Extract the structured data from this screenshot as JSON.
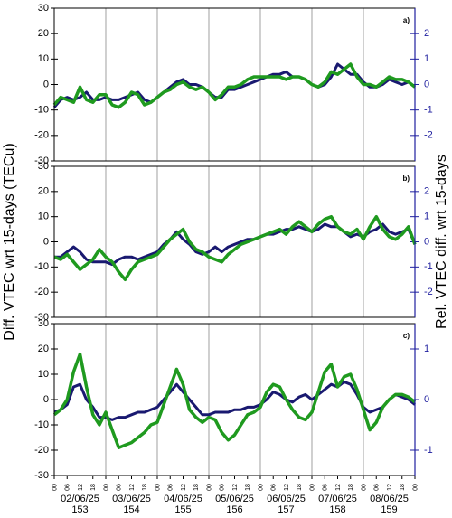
{
  "chart_data": [
    {
      "type": "line",
      "panel_label": "a)",
      "xlim": [
        0,
        168
      ],
      "ylim": [
        -30,
        30
      ],
      "yticks": [
        -30,
        -20,
        -10,
        0,
        10,
        20,
        30
      ],
      "y2lim": [
        -3,
        3
      ],
      "y2ticks": [
        -2,
        -1,
        0,
        1,
        2
      ],
      "x": [
        0,
        3,
        6,
        9,
        12,
        15,
        18,
        21,
        24,
        27,
        30,
        33,
        36,
        39,
        42,
        45,
        48,
        51,
        54,
        57,
        60,
        63,
        66,
        69,
        72,
        75,
        78,
        81,
        84,
        87,
        90,
        93,
        96,
        99,
        102,
        105,
        108,
        111,
        114,
        117,
        120,
        123,
        126,
        129,
        132,
        135,
        138,
        141,
        144,
        147,
        150,
        153,
        156,
        159,
        162,
        165,
        168
      ],
      "series": [
        {
          "color": "#191970",
          "values": [
            -9,
            -6,
            -5,
            -6,
            -5,
            -3,
            -6,
            -6,
            -5,
            -6,
            -6,
            -5,
            -4,
            -3,
            -6,
            -7,
            -5,
            -3,
            -1,
            1,
            2,
            0,
            0,
            -1,
            -3,
            -5,
            -5,
            -2,
            -2,
            -1,
            0,
            1,
            2,
            3,
            4,
            4,
            5,
            3,
            3,
            2,
            0,
            -1,
            0,
            3,
            8,
            6,
            4,
            4,
            1,
            -1,
            -1,
            0,
            2,
            1,
            0,
            1,
            -1
          ]
        },
        {
          "color": "#1f9a1f",
          "values": [
            -8,
            -5,
            -6,
            -7,
            -1,
            -6,
            -7,
            -4,
            -4,
            -8,
            -9,
            -7,
            -3,
            -4,
            -8,
            -7,
            -5,
            -3,
            -2,
            0,
            1,
            -1,
            -2,
            -1,
            -3,
            -6,
            -4,
            -1,
            -1,
            0,
            2,
            3,
            3,
            3,
            3,
            3,
            2,
            3,
            3,
            2,
            0,
            -1,
            1,
            5,
            4,
            6,
            8,
            3,
            0,
            0,
            -1,
            1,
            3,
            2,
            2,
            1,
            -1
          ]
        }
      ]
    },
    {
      "type": "line",
      "panel_label": "b)",
      "ylabel": "Diff. VTEC wrt 15-days (TECu)",
      "y2label": "Rel. VTEC diff. wrt 15-days",
      "xlim": [
        0,
        168
      ],
      "ylim": [
        -30,
        30
      ],
      "yticks": [
        -30,
        -20,
        -10,
        0,
        10,
        20,
        30
      ],
      "y2lim": [
        -3,
        3
      ],
      "y2ticks": [
        -2,
        -1,
        0,
        1,
        2
      ],
      "x": [
        0,
        3,
        6,
        9,
        12,
        15,
        18,
        21,
        24,
        27,
        30,
        33,
        36,
        39,
        42,
        45,
        48,
        51,
        54,
        57,
        60,
        63,
        66,
        69,
        72,
        75,
        78,
        81,
        84,
        87,
        90,
        93,
        96,
        99,
        102,
        105,
        108,
        111,
        114,
        117,
        120,
        123,
        126,
        129,
        132,
        135,
        138,
        141,
        144,
        147,
        150,
        153,
        156,
        159,
        162,
        165,
        168
      ],
      "series": [
        {
          "color": "#191970",
          "values": [
            -6,
            -6,
            -4,
            -2,
            -4,
            -7,
            -8,
            -8,
            -8,
            -9,
            -7,
            -6,
            -6,
            -7,
            -6,
            -5,
            -4,
            -1,
            1,
            4,
            1,
            -1,
            -4,
            -5,
            -4,
            -2,
            -4,
            -2,
            -1,
            0,
            1,
            1,
            2,
            3,
            3,
            4,
            5,
            5,
            6,
            5,
            4,
            5,
            7,
            6,
            6,
            4,
            2,
            3,
            2,
            4,
            5,
            7,
            4,
            3,
            4,
            5,
            -1
          ]
        },
        {
          "color": "#1f9a1f",
          "values": [
            -6,
            -7,
            -5,
            -8,
            -11,
            -9,
            -7,
            -3,
            -6,
            -8,
            -12,
            -15,
            -11,
            -8,
            -7,
            -6,
            -5,
            -2,
            1,
            3,
            5,
            0,
            -3,
            -4,
            -6,
            -7,
            -8,
            -5,
            -3,
            -1,
            0,
            1,
            2,
            3,
            4,
            5,
            3,
            6,
            8,
            6,
            4,
            7,
            9,
            10,
            6,
            4,
            3,
            5,
            1,
            6,
            10,
            5,
            2,
            1,
            3,
            6,
            -1
          ]
        }
      ]
    },
    {
      "type": "line",
      "panel_label": "c)",
      "xlim": [
        0,
        168
      ],
      "ylim": [
        -30,
        30
      ],
      "yticks": [
        -30,
        -20,
        -10,
        0,
        10,
        20,
        30
      ],
      "y2lim": [
        -1.5,
        1.5
      ],
      "y2ticks": [
        -1,
        0,
        1
      ],
      "x": [
        0,
        3,
        6,
        9,
        12,
        15,
        18,
        21,
        24,
        27,
        30,
        33,
        36,
        39,
        42,
        45,
        48,
        51,
        54,
        57,
        60,
        63,
        66,
        69,
        72,
        75,
        78,
        81,
        84,
        87,
        90,
        93,
        96,
        99,
        102,
        105,
        108,
        111,
        114,
        117,
        120,
        123,
        126,
        129,
        132,
        135,
        138,
        141,
        144,
        147,
        150,
        153,
        156,
        159,
        162,
        165,
        168
      ],
      "xticks": [
        {
          "value": 0,
          "label": "00"
        },
        {
          "value": 6,
          "label": "06"
        },
        12,
        18,
        {
          "value": 24,
          "label": "00"
        },
        {
          "value": 30,
          "label": "06"
        },
        {
          "value": 36,
          "label": "12"
        },
        {
          "value": 42,
          "label": "18"
        },
        {
          "value": 48,
          "label": "00"
        },
        {
          "value": 54,
          "label": "06"
        },
        {
          "value": 60,
          "label": "12"
        },
        {
          "value": 66,
          "label": "18"
        },
        {
          "value": 72,
          "label": "00"
        },
        {
          "value": 78,
          "label": "06"
        },
        {
          "value": 84,
          "label": "12"
        },
        {
          "value": 90,
          "label": "18"
        },
        {
          "value": 96,
          "label": "00"
        },
        {
          "value": 102,
          "label": "06"
        },
        {
          "value": 108,
          "label": "12"
        },
        {
          "value": 114,
          "label": "18"
        },
        {
          "value": 120,
          "label": "00"
        },
        {
          "value": 126,
          "label": "06"
        },
        {
          "value": 132,
          "label": "12"
        },
        {
          "value": 138,
          "label": "18"
        },
        {
          "value": 144,
          "label": "00"
        },
        {
          "value": 150,
          "label": "06"
        },
        {
          "value": 156,
          "label": "12"
        },
        {
          "value": 162,
          "label": "18"
        },
        {
          "value": 168,
          "label": "00"
        }
      ],
      "dates": [
        "02/06/25",
        "03/06/25",
        "04/06/25",
        "05/06/25",
        "06/06/25",
        "07/06/25",
        "08/06/25"
      ],
      "doy": [
        "153",
        "154",
        "155",
        "156",
        "157",
        "158",
        "159"
      ],
      "series": [
        {
          "color": "#191970",
          "values": [
            -5,
            -4,
            -2,
            5,
            6,
            0,
            -3,
            -7,
            -7,
            -8,
            -7,
            -7,
            -6,
            -5,
            -5,
            -4,
            -3,
            0,
            3,
            6,
            3,
            0,
            -3,
            -6,
            -6,
            -5,
            -5,
            -5,
            -4,
            -4,
            -3,
            -3,
            -2,
            0,
            3,
            2,
            0,
            -1,
            1,
            2,
            0,
            2,
            4,
            6,
            5,
            7,
            6,
            2,
            -3,
            -5,
            -4,
            -3,
            0,
            2,
            1,
            0,
            -2
          ]
        },
        {
          "color": "#1f9a1f",
          "values": [
            -6,
            -4,
            0,
            11,
            18,
            5,
            -6,
            -10,
            -5,
            -12,
            -19,
            -18,
            -17,
            -15,
            -13,
            -10,
            -9,
            -2,
            5,
            12,
            6,
            -4,
            -7,
            -9,
            -7,
            -8,
            -13,
            -16,
            -14,
            -10,
            -6,
            -5,
            -3,
            3,
            6,
            5,
            0,
            -4,
            -7,
            -8,
            -5,
            3,
            11,
            14,
            5,
            9,
            10,
            4,
            -4,
            -12,
            -9,
            -3,
            0,
            2,
            2,
            1,
            -1
          ]
        }
      ]
    }
  ]
}
